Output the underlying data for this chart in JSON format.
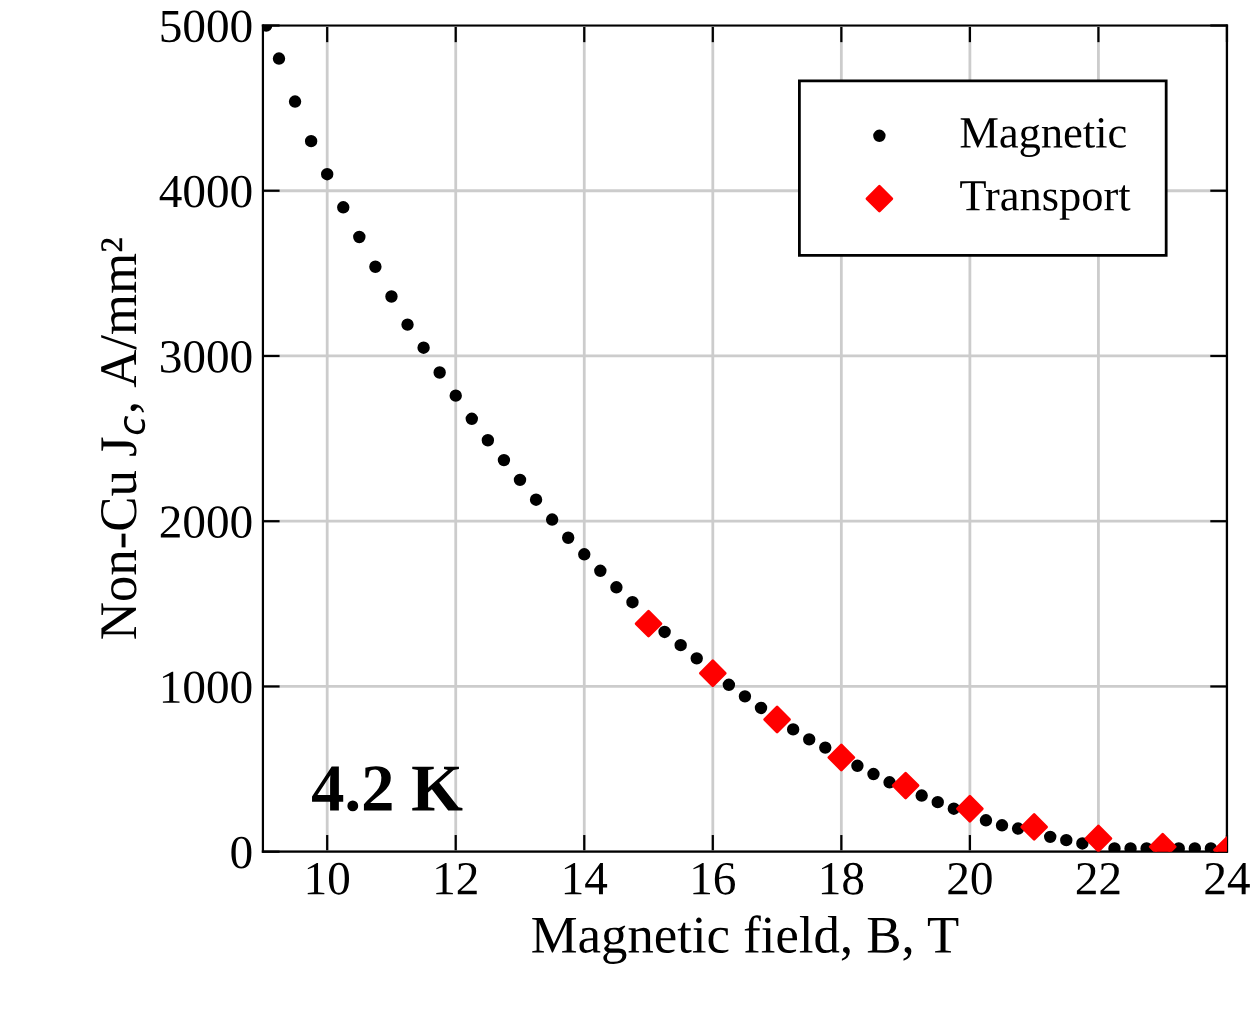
{
  "chart_data": {
    "type": "scatter",
    "xlabel": "Magnetic field, B, T",
    "ylabel": "Non-Cu J$_{c}$, A/mm²",
    "annotations": [
      "4.2 K"
    ],
    "series": [
      {
        "name": "Magnetic",
        "color": "#000000",
        "marker": "circle",
        "x": [
          9.05,
          9.25,
          9.5,
          9.75,
          10,
          10.25,
          10.5,
          10.75,
          11,
          11.25,
          11.5,
          11.75,
          12,
          12.25,
          12.5,
          12.75,
          13,
          13.25,
          13.5,
          13.75,
          14,
          14.25,
          14.5,
          14.75,
          15.25,
          15.5,
          15.75,
          16.25,
          16.5,
          16.75,
          17.25,
          17.5,
          17.75,
          18.25,
          18.5,
          18.75,
          19.25,
          19.5,
          19.75,
          20.25,
          20.5,
          20.75,
          21.25,
          21.5,
          21.75,
          22.25,
          22.5,
          22.75,
          23.25,
          23.5,
          23.75
        ],
        "values": [
          5000,
          4800,
          4540,
          4300,
          4100,
          3900,
          3720,
          3540,
          3360,
          3190,
          3050,
          2900,
          2760,
          2620,
          2490,
          2370,
          2250,
          2130,
          2010,
          1900,
          1800,
          1700,
          1600,
          1510,
          1330,
          1250,
          1170,
          1010,
          940,
          870,
          740,
          680,
          630,
          520,
          470,
          420,
          340,
          300,
          260,
          190,
          160,
          140,
          90,
          70,
          50,
          20,
          20,
          20,
          20,
          20,
          20
        ]
      },
      {
        "name": "Transport",
        "color": "#ff0000",
        "marker": "diamond",
        "x": [
          15,
          16,
          17,
          18,
          19,
          20,
          21,
          22,
          23,
          24
        ],
        "values": [
          1380,
          1080,
          800,
          570,
          400,
          260,
          150,
          80,
          30,
          10
        ]
      }
    ],
    "xlim": [
      9,
      24
    ],
    "xticks": [
      10,
      12,
      14,
      16,
      18,
      20,
      22,
      24
    ],
    "ylim": [
      0,
      5000
    ],
    "yticks": [
      0,
      1000,
      2000,
      3000,
      4000,
      5000
    ],
    "grid": true,
    "legend": "top right"
  }
}
